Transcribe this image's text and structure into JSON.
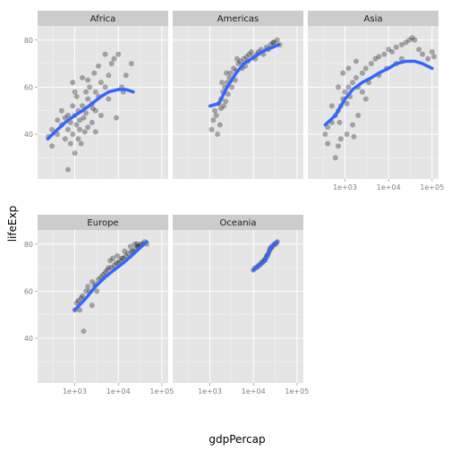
{
  "chart_data": {
    "type": "scatter",
    "xlabel": "gdpPercap",
    "ylabel": "lifeExp",
    "x_scale": "log10",
    "xlim": [
      140,
      140000
    ],
    "ylim": [
      21,
      86
    ],
    "x_ticks": [
      {
        "value": 1000,
        "label": "1e+03"
      },
      {
        "value": 10000,
        "label": "1e+04"
      },
      {
        "value": 100000,
        "label": "1e+05"
      }
    ],
    "y_ticks": [
      {
        "value": 40,
        "label": "40"
      },
      {
        "value": 60,
        "label": "60"
      },
      {
        "value": 80,
        "label": "80"
      }
    ],
    "point_color": "#000000",
    "point_opacity": 0.3,
    "smooth_color": "#3366ff",
    "grid": true,
    "facets": [
      {
        "label": "Africa",
        "points": [
          [
            600,
            38
          ],
          [
            700,
            42
          ],
          [
            800,
            45
          ],
          [
            900,
            40
          ],
          [
            1000,
            48
          ],
          [
            1100,
            44
          ],
          [
            1200,
            50
          ],
          [
            1300,
            46
          ],
          [
            1500,
            52
          ],
          [
            1800,
            49
          ],
          [
            2000,
            55
          ],
          [
            2500,
            53
          ],
          [
            3000,
            58
          ],
          [
            3500,
            56
          ],
          [
            4000,
            62
          ],
          [
            5000,
            60
          ],
          [
            6000,
            65
          ],
          [
            7000,
            70
          ],
          [
            8000,
            72
          ],
          [
            10000,
            74
          ],
          [
            300,
            35
          ],
          [
            400,
            40
          ],
          [
            500,
            44
          ],
          [
            250,
            39
          ],
          [
            700,
            48
          ],
          [
            900,
            52
          ],
          [
            1100,
            56
          ],
          [
            1300,
            42
          ],
          [
            1600,
            47
          ],
          [
            2200,
            60
          ],
          [
            2800,
            66
          ],
          [
            800,
            36
          ],
          [
            1200,
            38
          ],
          [
            1700,
            41
          ],
          [
            2500,
            45
          ],
          [
            3000,
            50
          ],
          [
            6000,
            55
          ],
          [
            12000,
            60
          ],
          [
            15000,
            65
          ],
          [
            20000,
            70
          ],
          [
            900,
            62
          ],
          [
            1500,
            64
          ],
          [
            700,
            25
          ],
          [
            1000,
            32
          ],
          [
            2000,
            43
          ],
          [
            4000,
            48
          ],
          [
            9000,
            47
          ],
          [
            3500,
            69
          ],
          [
            5000,
            74
          ],
          [
            600,
            47
          ],
          [
            400,
            46
          ],
          [
            1800,
            58
          ],
          [
            2600,
            51
          ],
          [
            1400,
            36
          ],
          [
            13000,
            58
          ],
          [
            300,
            42
          ],
          [
            500,
            50
          ],
          [
            1000,
            58
          ],
          [
            2000,
            63
          ],
          [
            3000,
            41
          ]
        ],
        "smooth": [
          [
            240,
            38
          ],
          [
            400,
            42
          ],
          [
            600,
            45
          ],
          [
            1000,
            48
          ],
          [
            1500,
            50
          ],
          [
            2500,
            53
          ],
          [
            4000,
            56
          ],
          [
            6000,
            58
          ],
          [
            10000,
            59
          ],
          [
            15000,
            59
          ],
          [
            22000,
            58
          ]
        ]
      },
      {
        "label": "Americas",
        "points": [
          [
            1100,
            42
          ],
          [
            1200,
            46
          ],
          [
            1300,
            50
          ],
          [
            1400,
            48
          ],
          [
            1600,
            53
          ],
          [
            1800,
            55
          ],
          [
            2000,
            58
          ],
          [
            2200,
            60
          ],
          [
            2500,
            62
          ],
          [
            2800,
            64
          ],
          [
            3000,
            66
          ],
          [
            3500,
            68
          ],
          [
            4000,
            67
          ],
          [
            4500,
            70
          ],
          [
            5000,
            71
          ],
          [
            6000,
            72
          ],
          [
            7000,
            73
          ],
          [
            8000,
            74
          ],
          [
            9000,
            75
          ],
          [
            10000,
            73
          ],
          [
            12000,
            74
          ],
          [
            15000,
            76
          ],
          [
            20000,
            77
          ],
          [
            25000,
            78
          ],
          [
            30000,
            79
          ],
          [
            35000,
            80
          ],
          [
            40000,
            78
          ],
          [
            1500,
            40
          ],
          [
            1700,
            44
          ],
          [
            2100,
            52
          ],
          [
            2600,
            57
          ],
          [
            3200,
            60
          ],
          [
            3800,
            63
          ],
          [
            4200,
            72
          ],
          [
            5500,
            68
          ],
          [
            6500,
            69
          ],
          [
            7500,
            71
          ],
          [
            11000,
            72
          ],
          [
            13000,
            75
          ],
          [
            17000,
            74
          ],
          [
            22000,
            76
          ],
          [
            28000,
            79
          ],
          [
            1900,
            62
          ],
          [
            2400,
            66
          ],
          [
            1800,
            51
          ],
          [
            2300,
            54
          ]
        ],
        "smooth": [
          [
            1000,
            52
          ],
          [
            1600,
            53
          ],
          [
            2500,
            60
          ],
          [
            4000,
            66
          ],
          [
            6000,
            70
          ],
          [
            9000,
            72
          ],
          [
            13000,
            74
          ],
          [
            20000,
            76
          ],
          [
            28000,
            77
          ],
          [
            38000,
            78
          ]
        ]
      },
      {
        "label": "Asia",
        "points": [
          [
            350,
            40
          ],
          [
            400,
            43
          ],
          [
            500,
            45
          ],
          [
            600,
            48
          ],
          [
            700,
            50
          ],
          [
            800,
            52
          ],
          [
            900,
            55
          ],
          [
            1000,
            58
          ],
          [
            1200,
            60
          ],
          [
            1500,
            62
          ],
          [
            1800,
            64
          ],
          [
            2000,
            60
          ],
          [
            2500,
            66
          ],
          [
            3000,
            68
          ],
          [
            4000,
            70
          ],
          [
            5000,
            72
          ],
          [
            6000,
            73
          ],
          [
            8000,
            74
          ],
          [
            10000,
            76
          ],
          [
            12000,
            75
          ],
          [
            15000,
            77
          ],
          [
            20000,
            78
          ],
          [
            25000,
            79
          ],
          [
            30000,
            80
          ],
          [
            35000,
            81
          ],
          [
            40000,
            80
          ],
          [
            50000,
            76
          ],
          [
            60000,
            74
          ],
          [
            80000,
            72
          ],
          [
            100000,
            75
          ],
          [
            110000,
            73
          ],
          [
            600,
            30
          ],
          [
            700,
            35
          ],
          [
            800,
            38
          ],
          [
            400,
            36
          ],
          [
            1500,
            44
          ],
          [
            2000,
            48
          ],
          [
            1100,
            53
          ],
          [
            1300,
            56
          ],
          [
            3500,
            62
          ],
          [
            700,
            60
          ],
          [
            500,
            52
          ],
          [
            900,
            66
          ],
          [
            1200,
            68
          ],
          [
            1800,
            71
          ],
          [
            2500,
            58
          ],
          [
            3000,
            55
          ],
          [
            6000,
            65
          ],
          [
            9000,
            68
          ],
          [
            15000,
            70
          ],
          [
            20000,
            72
          ],
          [
            1600,
            39
          ],
          [
            1100,
            40
          ],
          [
            750,
            45
          ]
        ],
        "smooth": [
          [
            350,
            44
          ],
          [
            600,
            48
          ],
          [
            1000,
            55
          ],
          [
            1500,
            59
          ],
          [
            2500,
            62
          ],
          [
            4000,
            64
          ],
          [
            6000,
            66
          ],
          [
            10000,
            68
          ],
          [
            15000,
            70
          ],
          [
            25000,
            71
          ],
          [
            40000,
            71
          ],
          [
            60000,
            70
          ],
          [
            100000,
            68
          ]
        ]
      },
      {
        "label": "Europe",
        "points": [
          [
            1000,
            52
          ],
          [
            1100,
            55
          ],
          [
            1200,
            56
          ],
          [
            1300,
            52
          ],
          [
            1400,
            57
          ],
          [
            1500,
            58
          ],
          [
            1800,
            60
          ],
          [
            2000,
            62
          ],
          [
            2200,
            60
          ],
          [
            2500,
            64
          ],
          [
            2800,
            62
          ],
          [
            3000,
            63
          ],
          [
            3500,
            65
          ],
          [
            4000,
            66
          ],
          [
            4500,
            67
          ],
          [
            5000,
            68
          ],
          [
            5500,
            69
          ],
          [
            6000,
            70
          ],
          [
            7000,
            70
          ],
          [
            8000,
            71
          ],
          [
            9000,
            72
          ],
          [
            10000,
            72
          ],
          [
            11000,
            73
          ],
          [
            12000,
            74
          ],
          [
            13000,
            74
          ],
          [
            15000,
            75
          ],
          [
            17000,
            76
          ],
          [
            20000,
            77
          ],
          [
            22000,
            77
          ],
          [
            25000,
            78
          ],
          [
            28000,
            79
          ],
          [
            30000,
            79
          ],
          [
            33000,
            80
          ],
          [
            36000,
            80
          ],
          [
            40000,
            81
          ],
          [
            45000,
            80
          ],
          [
            1600,
            43
          ],
          [
            2500,
            54
          ],
          [
            3200,
            60
          ],
          [
            6500,
            73
          ],
          [
            7500,
            74
          ],
          [
            9500,
            75
          ],
          [
            14000,
            77
          ],
          [
            19000,
            79
          ],
          [
            24000,
            80
          ],
          [
            27000,
            80
          ]
        ],
        "smooth": [
          [
            1000,
            52
          ],
          [
            1800,
            57
          ],
          [
            3000,
            62
          ],
          [
            5000,
            66
          ],
          [
            8000,
            69
          ],
          [
            13000,
            72
          ],
          [
            20000,
            75
          ],
          [
            30000,
            78
          ],
          [
            45000,
            81
          ]
        ]
      },
      {
        "label": "Oceania",
        "points": [
          [
            10000,
            69
          ],
          [
            11000,
            70
          ],
          [
            12000,
            70
          ],
          [
            13000,
            71
          ],
          [
            14000,
            71
          ],
          [
            15000,
            72
          ],
          [
            16000,
            72
          ],
          [
            17000,
            73
          ],
          [
            18000,
            73
          ],
          [
            19000,
            74
          ],
          [
            20000,
            75
          ],
          [
            21000,
            75
          ],
          [
            22000,
            76
          ],
          [
            23000,
            77
          ],
          [
            24000,
            78
          ],
          [
            25000,
            78
          ],
          [
            26000,
            79
          ],
          [
            28000,
            79
          ],
          [
            30000,
            80
          ],
          [
            33000,
            80
          ],
          [
            35000,
            81
          ]
        ],
        "smooth": [
          [
            10000,
            69
          ],
          [
            13000,
            71
          ],
          [
            16000,
            72
          ],
          [
            19000,
            73
          ],
          [
            22000,
            76
          ],
          [
            26000,
            79
          ],
          [
            30000,
            80
          ],
          [
            35000,
            81
          ]
        ]
      }
    ]
  }
}
